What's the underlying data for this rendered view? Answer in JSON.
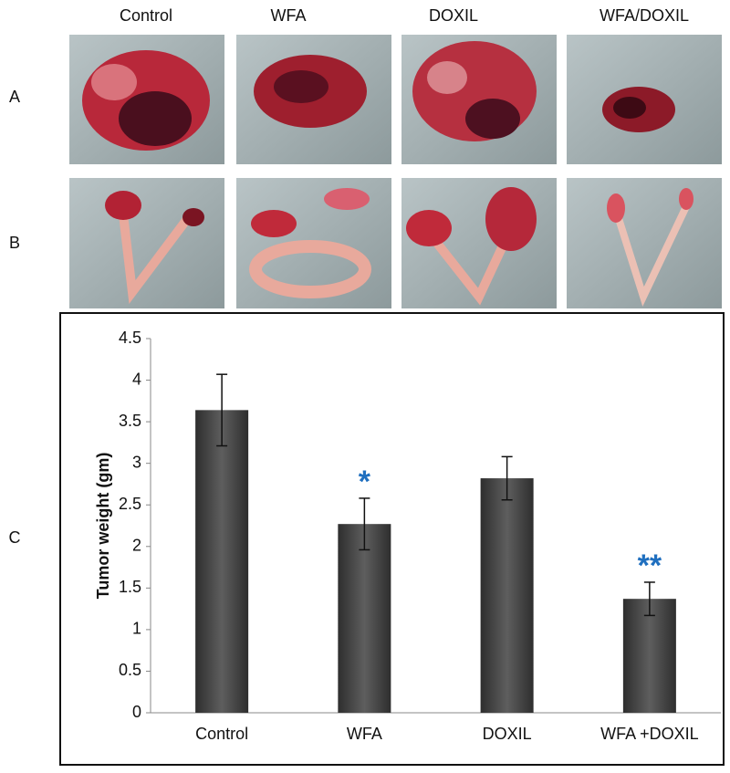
{
  "photos": {
    "columns": [
      "Control",
      "WFA",
      "DOXIL",
      "WFA/DOXIL"
    ],
    "rows": [
      "A",
      "B"
    ]
  },
  "panel_c_label": "C",
  "chart_data": {
    "type": "bar",
    "y_label": "Tumor weight (gm)",
    "categories": [
      "Control",
      "WFA",
      "DOXIL",
      "WFA +DOXIL"
    ],
    "values": [
      3.64,
      2.27,
      2.82,
      1.37
    ],
    "errors": [
      0.43,
      0.31,
      0.26,
      0.2
    ],
    "significance": [
      null,
      "*",
      null,
      "**"
    ],
    "significance_color": "#1f6fbf",
    "color": "#5e5e5e",
    "ylim": [
      0,
      4.5
    ],
    "yticks": [
      0,
      0.5,
      1,
      1.5,
      2,
      2.5,
      3,
      3.5,
      4,
      4.5
    ],
    "grid": false
  }
}
